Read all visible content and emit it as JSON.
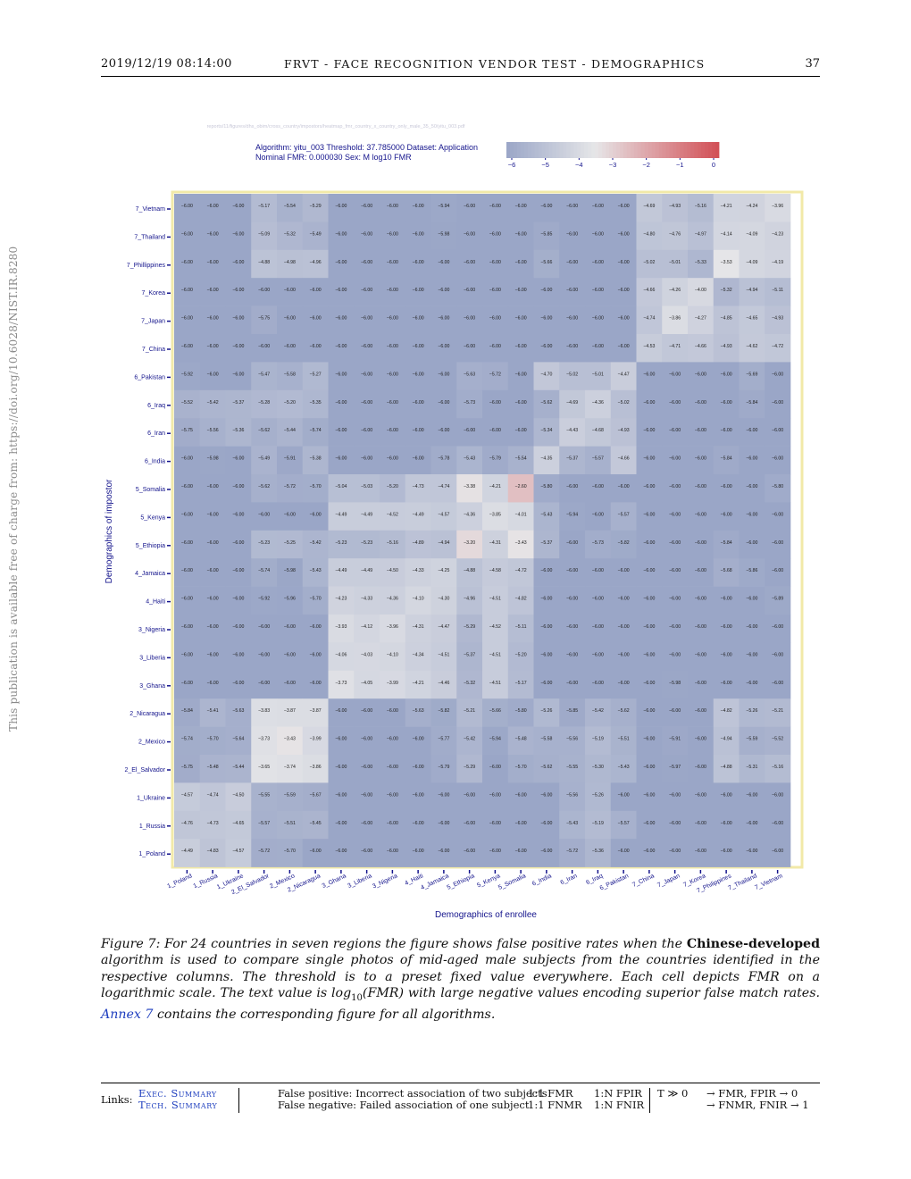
{
  "header": {
    "datetime": "2019/12/19 08:14:00",
    "title": "FRVT - FACE RECOGNITION VENDOR TEST - DEMOGRAPHICS",
    "page_number": "37"
  },
  "side_note": "This publication is available free of charge from: https://doi.org/10.6028/NIST.IR.8280",
  "figure_path": "reports/11/figures/dhs_obim/cross_country/impostors/heatmap_fmr_country_x_country_only_male_35_50/yitu_003.pdf",
  "chart_data": {
    "type": "heatmap",
    "title_line1": "Algorithm: yitu_003  Threshold: 37.785000  Dataset: Application",
    "title_line2": "Nominal FMR: 0.000030  Sex: M  log10 FMR",
    "xlabel": "Demographics of enrollee",
    "ylabel": "Demographics of impostor",
    "colorbar_ticks": [
      "−6",
      "−5",
      "−4",
      "−3",
      "−2",
      "−1",
      "0"
    ],
    "colorbar_range": [
      -6,
      0
    ],
    "x_categories": [
      "1_Poland",
      "1_Russia",
      "1_Ukraine",
      "2_El_Salvador",
      "2_Mexico",
      "2_Nicaragua",
      "3_Ghana",
      "3_Liberia",
      "3_Nigeria",
      "4_Haiti",
      "4_Jamaica",
      "5_Ethiopia",
      "5_Kenya",
      "5_Somalia",
      "6_India",
      "6_Iran",
      "6_Iraq",
      "6_Pakistan",
      "7_China",
      "7_Japan",
      "7_Korea",
      "7_Philippines",
      "7_Thailand",
      "7_Vietnam"
    ],
    "y_categories": [
      "7_Vietnam",
      "7_Thailand",
      "7_Phillippines",
      "7_Korea",
      "7_Japan",
      "7_China",
      "6_Pakistan",
      "6_Iraq",
      "6_Iran",
      "6_India",
      "5_Somalia",
      "5_Kenya",
      "5_Ethiopia",
      "4_Jamaica",
      "4_Haiti",
      "3_Nigeria",
      "3_Liberia",
      "3_Ghana",
      "2_Nicaragua",
      "2_Mexico",
      "2_El_Salvador",
      "1_Ukraine",
      "1_Russia",
      "1_Poland"
    ],
    "values": [
      [
        -6.0,
        -6.0,
        -6.0,
        -5.17,
        -5.54,
        -5.29,
        -6.0,
        -6.0,
        -6.0,
        -6.0,
        -5.94,
        -6.0,
        -6.0,
        -6.0,
        -6.0,
        -6.0,
        -6.0,
        -6.0,
        -4.69,
        -4.93,
        -5.16,
        -4.21,
        -4.24,
        -3.96
      ],
      [
        -6.0,
        -6.0,
        -6.0,
        -5.09,
        -5.32,
        -5.49,
        -6.0,
        -6.0,
        -6.0,
        -6.0,
        -5.98,
        -6.0,
        -6.0,
        -6.0,
        -5.85,
        -6.0,
        -6.0,
        -6.0,
        -4.8,
        -4.76,
        -4.97,
        -4.14,
        -4.09,
        -4.23
      ],
      [
        -6.0,
        -6.0,
        -6.0,
        -4.88,
        -4.98,
        -4.96,
        -6.0,
        -6.0,
        -6.0,
        -6.0,
        -6.0,
        -6.0,
        -6.0,
        -6.0,
        -5.66,
        -6.0,
        -6.0,
        -6.0,
        -5.02,
        -5.01,
        -5.33,
        -3.53,
        -4.09,
        -4.19
      ],
      [
        -6.0,
        -6.0,
        -6.0,
        -6.0,
        -6.0,
        -6.0,
        -6.0,
        -6.0,
        -6.0,
        -6.0,
        -6.0,
        -6.0,
        -6.0,
        -6.0,
        -6.0,
        -6.0,
        -6.0,
        -6.0,
        -4.66,
        -4.26,
        -4.0,
        -5.32,
        -4.94,
        -5.11
      ],
      [
        -6.0,
        -6.0,
        -6.0,
        -5.75,
        -6.0,
        -6.0,
        -6.0,
        -6.0,
        -6.0,
        -6.0,
        -6.0,
        -6.0,
        -6.0,
        -6.0,
        -6.0,
        -6.0,
        -6.0,
        -6.0,
        -4.74,
        -3.86,
        -4.27,
        -4.85,
        -4.65,
        -4.93
      ],
      [
        -6.0,
        -6.0,
        -6.0,
        -6.0,
        -6.0,
        -6.0,
        -6.0,
        -6.0,
        -6.0,
        -6.0,
        -6.0,
        -6.0,
        -6.0,
        -6.0,
        -6.0,
        -6.0,
        -6.0,
        -6.0,
        -4.53,
        -4.71,
        -4.66,
        -4.93,
        -4.62,
        -4.72
      ],
      [
        -5.92,
        -6.0,
        -6.0,
        -5.47,
        -5.58,
        -5.27,
        -6.0,
        -6.0,
        -6.0,
        -6.0,
        -6.0,
        -5.63,
        -5.72,
        -6.0,
        -4.7,
        -5.02,
        -5.01,
        -4.47,
        -6.0,
        -6.0,
        -6.0,
        -6.0,
        -5.69,
        -6.0
      ],
      [
        -5.52,
        -5.42,
        -5.37,
        -5.28,
        -5.2,
        -5.35,
        -6.0,
        -6.0,
        -6.0,
        -6.0,
        -6.0,
        -5.73,
        -6.0,
        -6.0,
        -5.62,
        -4.69,
        -4.36,
        -5.02,
        -6.0,
        -6.0,
        -6.0,
        -6.0,
        -5.84,
        -6.0
      ],
      [
        -5.75,
        -5.56,
        -5.36,
        -5.62,
        -5.44,
        -5.74,
        -6.0,
        -6.0,
        -6.0,
        -6.0,
        -6.0,
        -6.0,
        -6.0,
        -6.0,
        -5.34,
        -4.43,
        -4.68,
        -4.93,
        -6.0,
        -6.0,
        -6.0,
        -6.0,
        -6.0,
        -6.0
      ],
      [
        -6.0,
        -5.98,
        -6.0,
        -5.49,
        -5.91,
        -5.38,
        -6.0,
        -6.0,
        -6.0,
        -6.0,
        -5.78,
        -5.43,
        -5.79,
        -5.54,
        -4.35,
        -5.37,
        -5.57,
        -4.66,
        -6.0,
        -6.0,
        -6.0,
        -5.84,
        -6.0,
        -6.0
      ],
      [
        -6.0,
        -6.0,
        -6.0,
        -5.62,
        -5.72,
        -5.7,
        -5.04,
        -5.03,
        -5.2,
        -4.73,
        -4.74,
        -3.38,
        -4.21,
        -2.6,
        -5.8,
        -6.0,
        -6.0,
        -6.0,
        -6.0,
        -6.0,
        -6.0,
        -6.0,
        -6.0,
        -5.8
      ],
      [
        -6.0,
        -6.0,
        -6.0,
        -6.0,
        -6.0,
        -6.0,
        -4.49,
        -4.49,
        -4.52,
        -4.49,
        -4.57,
        -4.36,
        -3.85,
        -4.01,
        -5.43,
        -5.94,
        -6.0,
        -5.57,
        -6.0,
        -6.0,
        -6.0,
        -6.0,
        -6.0,
        -6.0
      ],
      [
        -6.0,
        -6.0,
        -6.0,
        -5.23,
        -5.25,
        -5.42,
        -5.23,
        -5.23,
        -5.16,
        -4.89,
        -4.94,
        -3.2,
        -4.31,
        -3.43,
        -5.37,
        -6.0,
        -5.73,
        -5.82,
        -6.0,
        -6.0,
        -6.0,
        -5.84,
        -6.0,
        -6.0
      ],
      [
        -6.0,
        -6.0,
        -6.0,
        -5.74,
        -5.98,
        -5.43,
        -4.49,
        -4.49,
        -4.5,
        -4.33,
        -4.25,
        -4.88,
        -4.58,
        -4.72,
        -6.0,
        -6.0,
        -6.0,
        -6.0,
        -6.0,
        -6.0,
        -6.0,
        -5.68,
        -5.86,
        -6.0
      ],
      [
        -6.0,
        -6.0,
        -6.0,
        -5.92,
        -5.96,
        -5.7,
        -4.23,
        -4.33,
        -4.36,
        -4.1,
        -4.3,
        -4.96,
        -4.51,
        -4.82,
        -6.0,
        -6.0,
        -6.0,
        -6.0,
        -6.0,
        -6.0,
        -6.0,
        -6.0,
        -6.0,
        -5.89
      ],
      [
        -6.0,
        -6.0,
        -6.0,
        -6.0,
        -6.0,
        -6.0,
        -3.93,
        -4.12,
        -3.96,
        -4.31,
        -4.47,
        -5.29,
        -4.52,
        -5.11,
        -6.0,
        -6.0,
        -6.0,
        -6.0,
        -6.0,
        -6.0,
        -6.0,
        -6.0,
        -6.0,
        -6.0
      ],
      [
        -6.0,
        -6.0,
        -6.0,
        -6.0,
        -6.0,
        -6.0,
        -4.06,
        -4.03,
        -4.1,
        -4.34,
        -4.51,
        -5.37,
        -4.51,
        -5.2,
        -6.0,
        -6.0,
        -6.0,
        -6.0,
        -6.0,
        -6.0,
        -6.0,
        -6.0,
        -6.0,
        -6.0
      ],
      [
        -6.0,
        -6.0,
        -6.0,
        -6.0,
        -6.0,
        -6.0,
        -3.73,
        -4.05,
        -3.99,
        -4.21,
        -4.46,
        -5.32,
        -4.51,
        -5.17,
        -6.0,
        -6.0,
        -6.0,
        -6.0,
        -6.0,
        -5.98,
        -6.0,
        -6.0,
        -6.0,
        -6.0
      ],
      [
        -5.84,
        -5.41,
        -5.63,
        -3.83,
        -3.87,
        -3.87,
        -6.0,
        -6.0,
        -6.0,
        -5.63,
        -5.82,
        -5.21,
        -5.66,
        -5.8,
        -5.26,
        -5.85,
        -5.42,
        -5.62,
        -6.0,
        -6.0,
        -6.0,
        -4.82,
        -5.26,
        -5.21
      ],
      [
        -5.74,
        -5.7,
        -5.64,
        -3.73,
        -3.43,
        -3.99,
        -6.0,
        -6.0,
        -6.0,
        -6.0,
        -5.77,
        -5.42,
        -5.94,
        -5.48,
        -5.58,
        -5.56,
        -5.19,
        -5.51,
        -6.0,
        -5.91,
        -6.0,
        -4.94,
        -5.59,
        -5.52
      ],
      [
        -5.75,
        -5.48,
        -5.44,
        -3.65,
        -3.74,
        -3.86,
        -6.0,
        -6.0,
        -6.0,
        -6.0,
        -5.79,
        -5.29,
        -6.0,
        -5.7,
        -5.62,
        -5.55,
        -5.3,
        -5.43,
        -6.0,
        -5.97,
        -6.0,
        -4.88,
        -5.31,
        -5.16
      ],
      [
        -4.57,
        -4.74,
        -4.5,
        -5.55,
        -5.59,
        -5.67,
        -6.0,
        -6.0,
        -6.0,
        -6.0,
        -6.0,
        -6.0,
        -6.0,
        -6.0,
        -6.0,
        -5.56,
        -5.26,
        -6.0,
        -6.0,
        -6.0,
        -6.0,
        -6.0,
        -6.0,
        -6.0
      ],
      [
        -4.76,
        -4.73,
        -4.65,
        -5.57,
        -5.51,
        -5.45,
        -6.0,
        -6.0,
        -6.0,
        -6.0,
        -6.0,
        -6.0,
        -6.0,
        -6.0,
        -6.0,
        -5.43,
        -5.19,
        -5.57,
        -6.0,
        -6.0,
        -6.0,
        -6.0,
        -6.0,
        -6.0
      ],
      [
        -4.49,
        -4.83,
        -4.57,
        -5.72,
        -5.7,
        -6.0,
        -6.0,
        -6.0,
        -6.0,
        -6.0,
        -6.0,
        -6.0,
        -6.0,
        -6.0,
        -6.0,
        -5.72,
        -5.36,
        -6.0,
        -6.0,
        -6.0,
        -6.0,
        -6.0,
        -6.0,
        -6.0
      ]
    ],
    "cell_label_format": "2 decimals, minus sign",
    "colors": {
      "low": "#9aa6c7",
      "mid": "#e6e6e8",
      "high": "#d24f55",
      "label": "#14148c",
      "panel_border": "#f2e9a8"
    }
  },
  "caption": {
    "prefix": "Figure 7: For 24 countries in seven regions the figure shows false positive rates when the ",
    "bold": "Chinese-developed",
    "middle": " algorithm is used to compare single photos of mid-aged male subjects from the countries identified in the respective columns. The threshold is to a preset fixed value everywhere. Each cell depicts FMR on a logarithmic scale. The text value is log",
    "sub": "10",
    "after_sub": "(FMR) with large negative values encoding superior false match rates. ",
    "link": "Annex 7",
    "suffix": " contains the corresponding figure for all algorithms."
  },
  "footer": {
    "links_label": "Links:",
    "link1": "Exec. Summary",
    "link2": "Tech. Summary",
    "def1": "False positive: Incorrect association of two subjects",
    "def2": "False negative: Failed association of one subject",
    "m11": "1:1 FMR",
    "m12": "1:1 FNMR",
    "m21": "1:N FPIR",
    "m22": "1:N FNIR",
    "t": "T ≫ 0",
    "r1": "→ FMR, FPIR → 0",
    "r2": "→ FNMR, FNIR → 1"
  }
}
